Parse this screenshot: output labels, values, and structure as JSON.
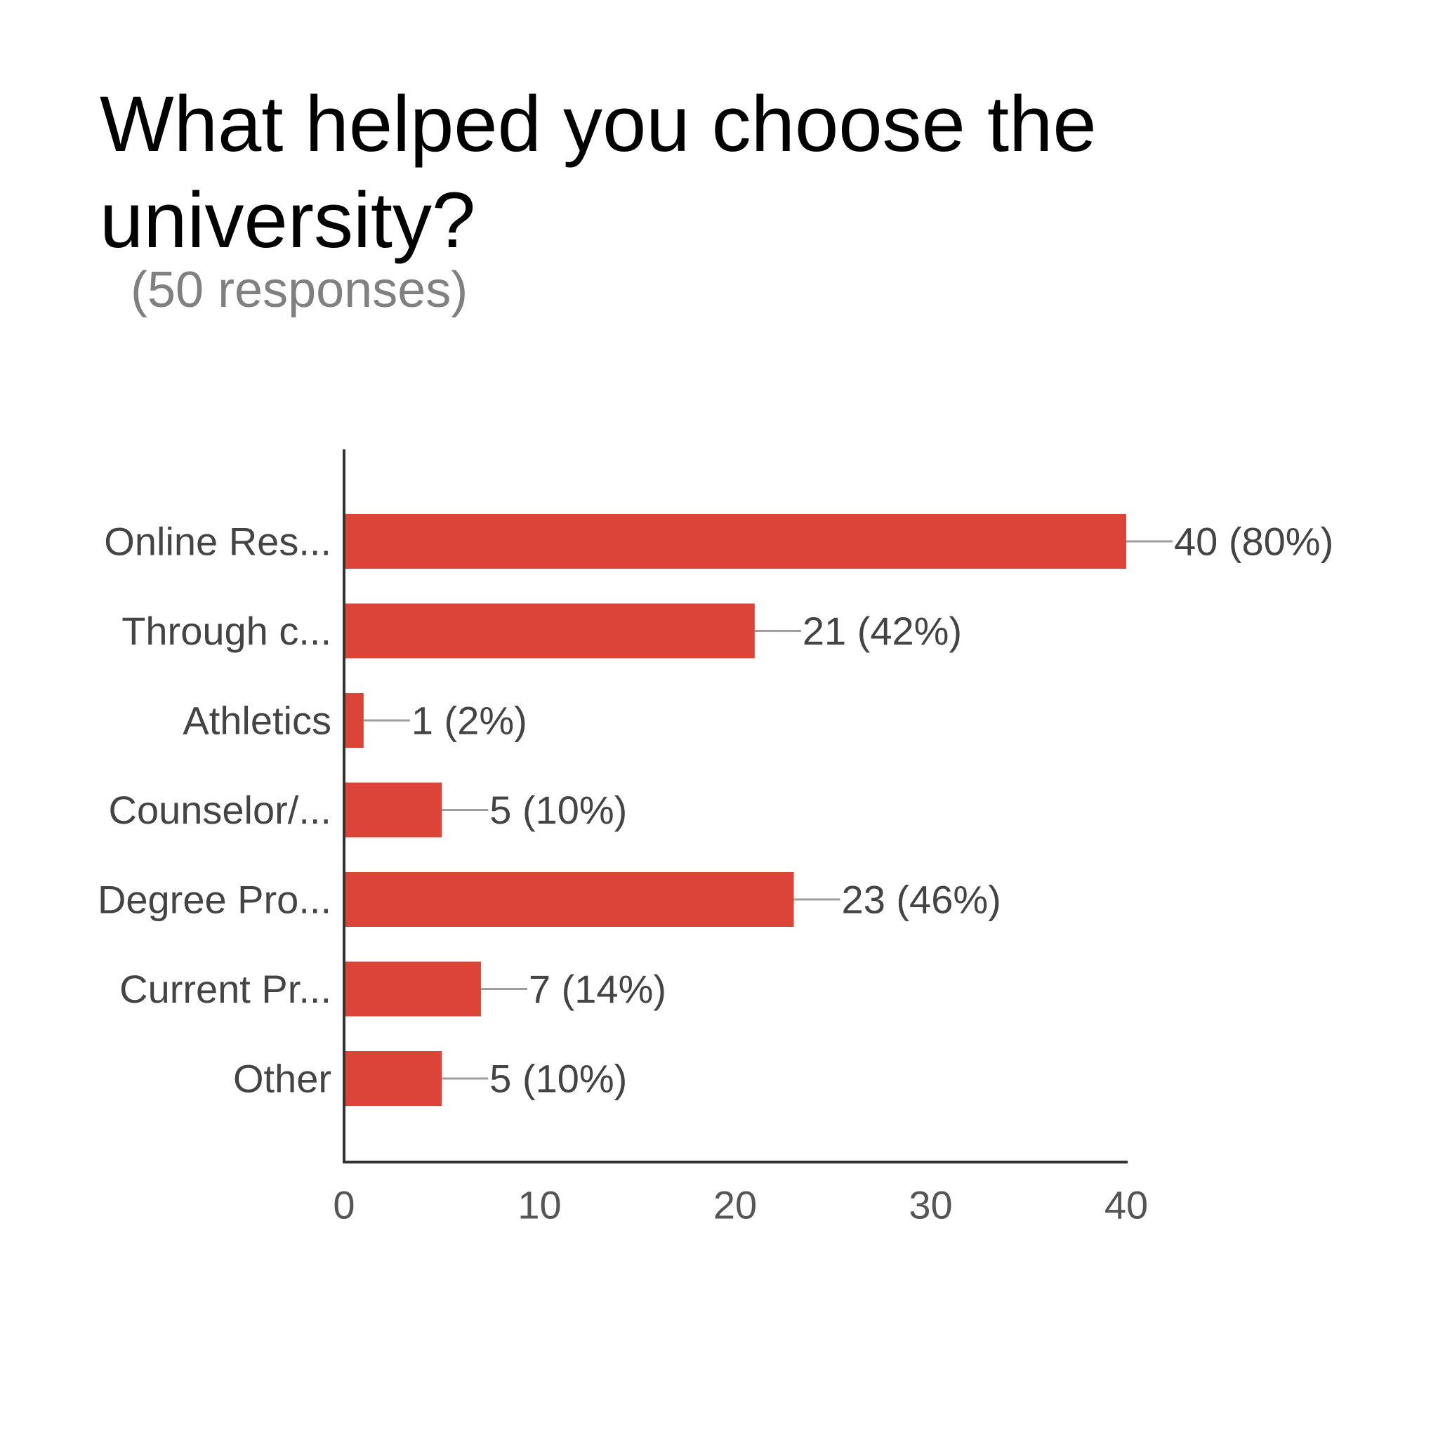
{
  "title": "What helped you choose the university?",
  "subtitle": "(50 responses)",
  "colors": {
    "bar": "#db4437",
    "axis": "#333333",
    "leader": "#9e9e9e",
    "label_text": "#444444"
  },
  "chart_data": {
    "type": "bar",
    "orientation": "horizontal",
    "title": "What helped you choose the university?",
    "subtitle": "(50 responses)",
    "categories": [
      "Online Res...",
      "Through c...",
      "Athletics",
      "Counselor/...",
      "Degree Pro...",
      "Current Pr...",
      "Other"
    ],
    "values": [
      40,
      21,
      1,
      5,
      23,
      7,
      5
    ],
    "value_labels": [
      "40 (80%)",
      "21 (42%)",
      "1 (2%)",
      "5 (10%)",
      "23 (46%)",
      "7 (14%)",
      "5 (10%)"
    ],
    "xticks": [
      0,
      10,
      20,
      30,
      40
    ],
    "xlim": [
      0,
      40
    ],
    "xlabel": "",
    "ylabel": "",
    "grid": false,
    "legend": "none"
  }
}
